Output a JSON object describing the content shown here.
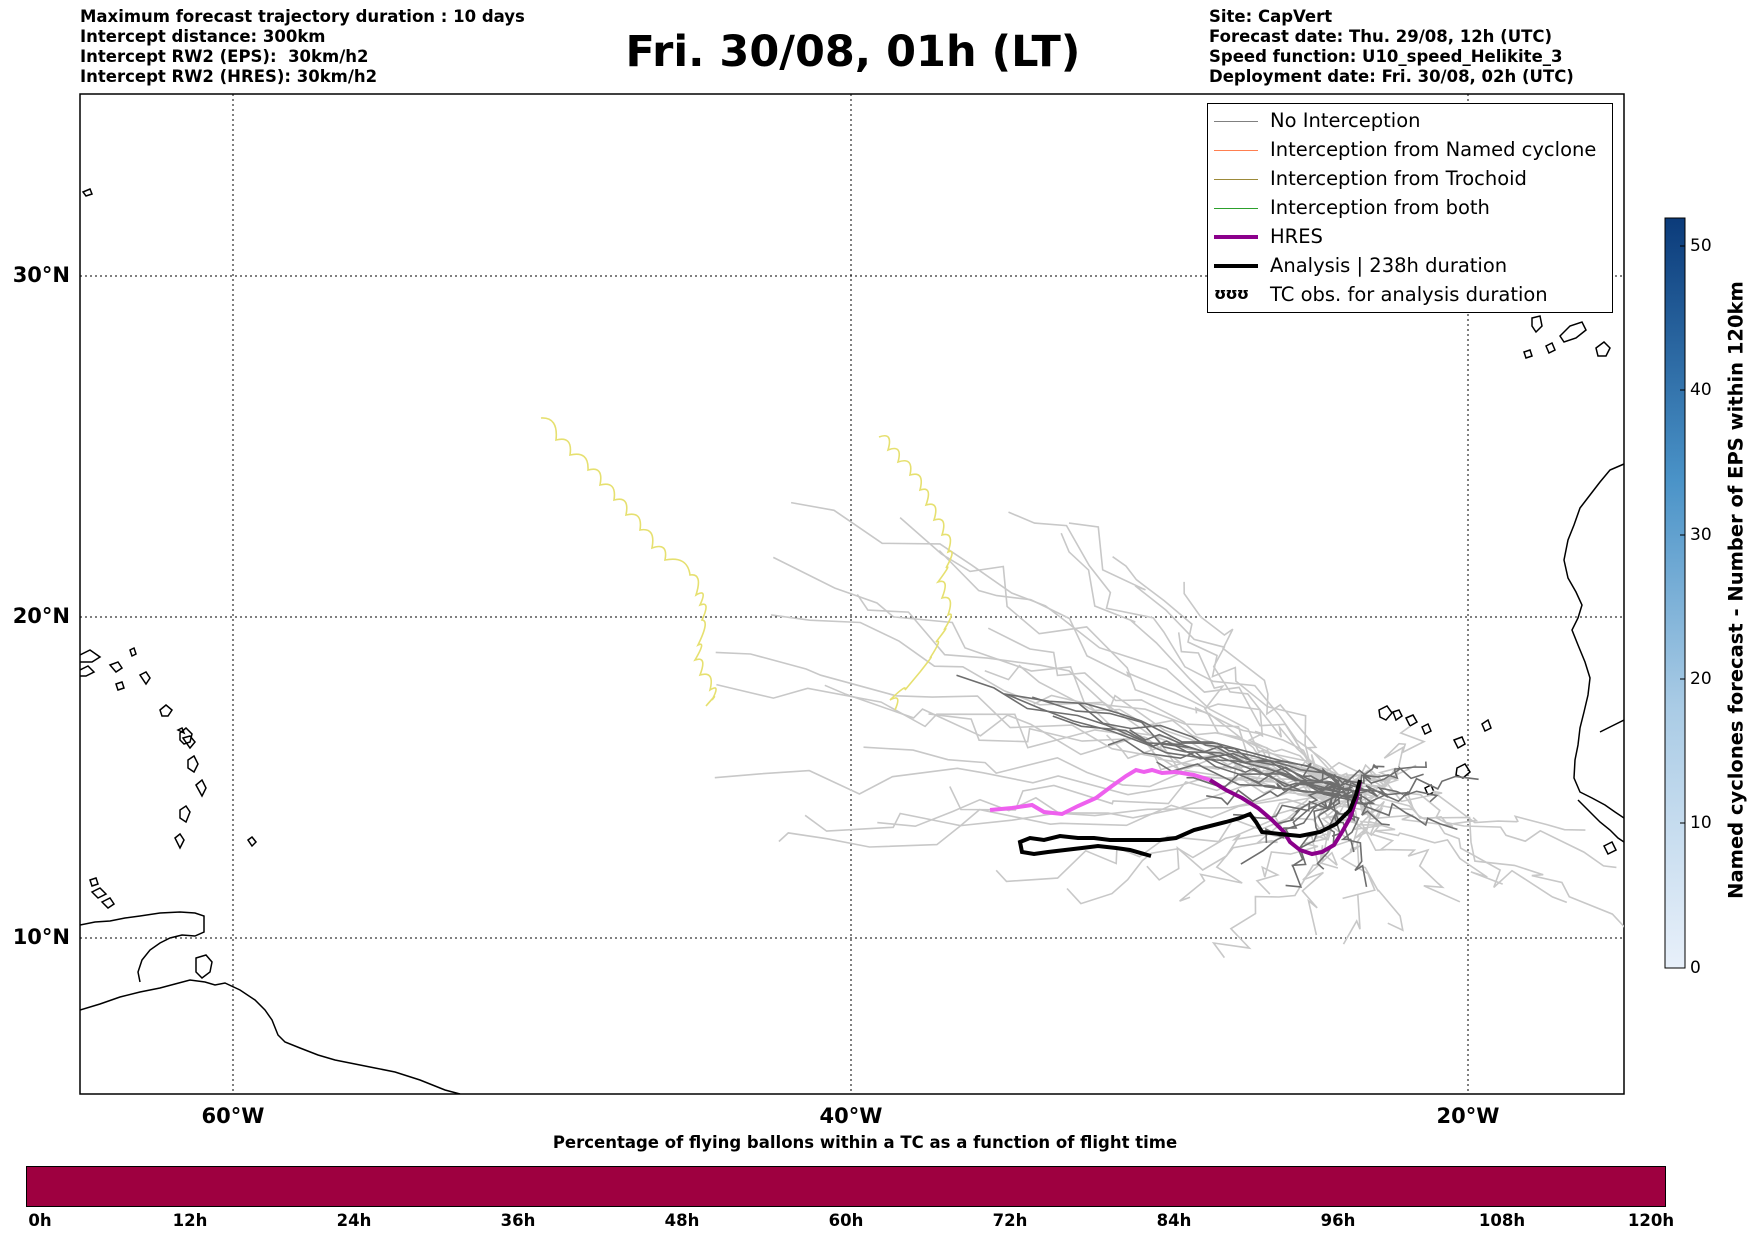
{
  "header_left": [
    "Maximum forecast trajectory duration : 10 days",
    "Intercept distance: 300km",
    "Intercept RW2 (EPS):  30km/h2",
    "Intercept RW2 (HRES): 30km/h2"
  ],
  "title": "Fri. 30/08, 01h (LT)",
  "header_right": [
    "Site: CapVert",
    "Forecast date: Thu. 29/08, 12h (UTC)",
    "Speed function: U10_speed_Helikite_3",
    "Deployment date: Fri. 30/08, 02h (UTC)"
  ],
  "map": {
    "lat_labels": [
      "30°N",
      "20°N",
      "10°N"
    ],
    "lon_labels": [
      "60°W",
      "40°W",
      "20°W"
    ],
    "grid": true,
    "colors": {
      "no_interception_light": "#c8c8c8",
      "no_interception_dark": "#6e6e6e",
      "trochoid_yellow": "#e6e070",
      "hres_light": "#ee60ee",
      "hres_dark": "#8b008b",
      "analysis": "#000000"
    }
  },
  "legend": {
    "items": [
      {
        "label": "No Interception",
        "color": "#808080",
        "width": 1.5
      },
      {
        "label": "Interception from Named cyclone",
        "color": "#ff7f50",
        "width": 1.5
      },
      {
        "label": "Interception from Trochoid",
        "color": "#9c8a3a",
        "width": 1.5
      },
      {
        "label": "Interception from both",
        "color": "#2ca02c",
        "width": 1.5
      },
      {
        "label": "HRES",
        "color": "#8b008b",
        "width": 4
      },
      {
        "label": "Analysis | 238h duration",
        "color": "#000000",
        "width": 4
      }
    ],
    "symbol_item": {
      "label": "TC obs. for analysis duration",
      "icon": "cyclone-symbols-icon",
      "glyph": "ʊʊʊ"
    }
  },
  "colorbar_right": {
    "label": "Named cyclones forecast - Number of EPS within 120km",
    "ticks": [
      "50",
      "40",
      "30",
      "20",
      "10",
      "0"
    ],
    "color_low": "#e8f0fa",
    "color_high": "#0b3b7a"
  },
  "colorbar_bottom": {
    "title": "Percentage of flying ballons within a TC as a function of flight time",
    "ticks": [
      "0h",
      "12h",
      "24h",
      "36h",
      "48h",
      "60h",
      "72h",
      "84h",
      "96h",
      "108h",
      "120h"
    ],
    "fill_color": "#9e0040"
  }
}
